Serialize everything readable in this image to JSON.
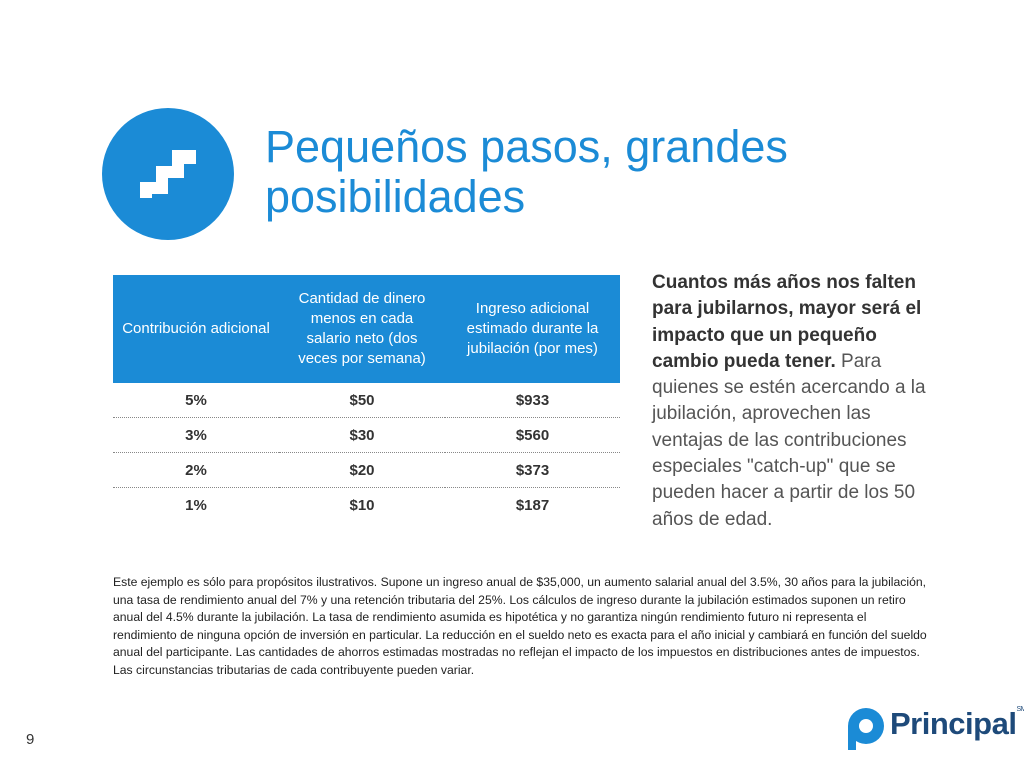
{
  "header": {
    "title_line1": "Pequeños pasos, grandes",
    "title_line2": "posibilidades"
  },
  "table": {
    "headers": [
      "Contribución adicional",
      "Cantidad de dinero menos en cada salario neto (dos veces por semana)",
      "Ingreso adicional estimado durante la jubilación (por mes)"
    ],
    "rows": [
      [
        "5%",
        "$50",
        "$933"
      ],
      [
        "3%",
        "$30",
        "$560"
      ],
      [
        "2%",
        "$20",
        "$373"
      ],
      [
        "1%",
        "$10",
        "$187"
      ]
    ]
  },
  "side_text": {
    "bold": "Cuantos más años nos falten para jubilarnos, mayor será el impacto que un pequeño cambio pueda tener.",
    "regular": "Para quienes se estén acercando a la jubilación, aprovechen las ventajas de las contribuciones especiales \"catch-up\" que se pueden hacer a partir de los 50 años de edad."
  },
  "footnote": "Este ejemplo es sólo para propósitos ilustrativos. Supone un ingreso anual de $35,000, un aumento salarial anual del 3.5%, 30 años para la jubilación, una tasa de rendimiento anual del 7% y una retención tributaria del 25%. Los cálculos de ingreso durante la jubilación estimados suponen un retiro anual del 4.5% durante la jubilación. La tasa de rendimiento asumida es hipotética y no garantiza ningún rendimiento futuro ni representa el rendimiento de ninguna opción de inversión en particular. La reducción en el sueldo neto es exacta para el año inicial y cambiará en función del sueldo anual del participante. Las cantidades de ahorros estimadas mostradas no reflejan el impacto de los impuestos en distribuciones antes de impuestos. Las circunstancias tributarias de cada contribuyente pueden variar.",
  "page_number": "9",
  "logo": {
    "name": "Principal",
    "mark": "SM"
  }
}
